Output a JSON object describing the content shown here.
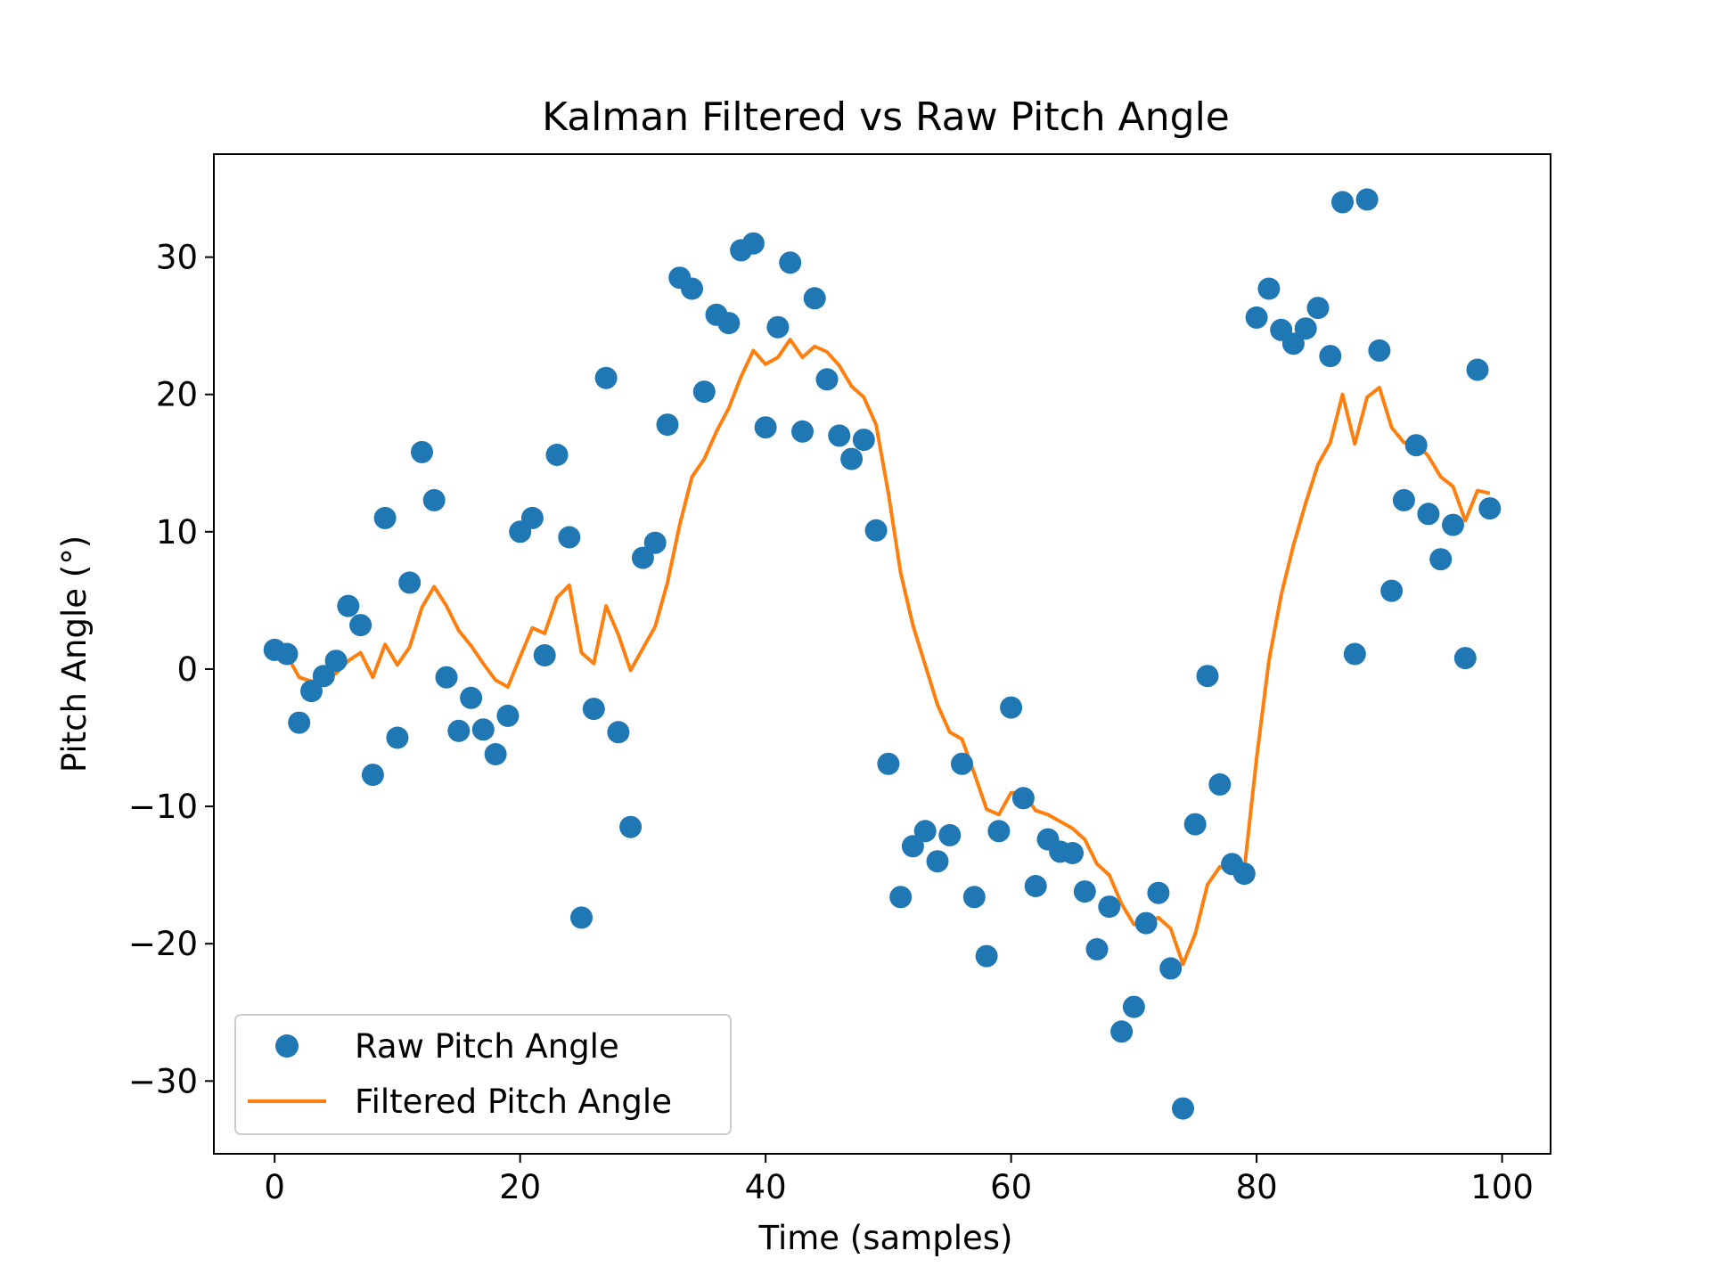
{
  "chart_data": {
    "type": "scatter",
    "title": "Kalman Filtered vs Raw Pitch Angle",
    "xlabel": "Time (samples)",
    "ylabel": "Pitch Angle (°)",
    "xlim": [
      -4.95,
      103.95
    ],
    "ylim": [
      -35.3,
      37.5
    ],
    "x_ticks": [
      0,
      20,
      40,
      60,
      80,
      100
    ],
    "y_ticks": [
      -30,
      -20,
      -10,
      0,
      10,
      20,
      30
    ],
    "x_tick_labels": [
      "0",
      "20",
      "40",
      "60",
      "80",
      "100"
    ],
    "y_tick_labels": [
      "−30",
      "−20",
      "−10",
      "0",
      "10",
      "20",
      "30"
    ],
    "grid": false,
    "legend_position": "lower-left",
    "series": [
      {
        "name": "Raw Pitch Angle",
        "kind": "scatter",
        "color": "#1f77b4",
        "x": [
          0,
          1,
          2,
          3,
          4,
          5,
          6,
          7,
          8,
          9,
          10,
          11,
          12,
          13,
          14,
          15,
          16,
          17,
          18,
          19,
          20,
          21,
          22,
          23,
          24,
          25,
          26,
          27,
          28,
          29,
          30,
          31,
          32,
          33,
          34,
          35,
          36,
          37,
          38,
          39,
          40,
          41,
          42,
          43,
          44,
          45,
          46,
          47,
          48,
          49,
          50,
          51,
          52,
          53,
          54,
          55,
          56,
          57,
          58,
          59,
          60,
          61,
          62,
          63,
          64,
          65,
          66,
          67,
          68,
          69,
          70,
          71,
          72,
          73,
          74,
          75,
          76,
          77,
          78,
          79,
          80,
          81,
          82,
          83,
          84,
          85,
          86,
          87,
          88,
          89,
          90,
          91,
          92,
          93,
          94,
          95,
          96,
          97,
          98,
          99
        ],
        "y": [
          1.4,
          1.1,
          -3.9,
          -1.6,
          -0.5,
          0.6,
          4.6,
          3.2,
          -7.7,
          11.0,
          -5.0,
          6.3,
          15.8,
          12.3,
          -0.6,
          -4.5,
          -2.1,
          -4.4,
          -6.2,
          -3.4,
          10.0,
          11.0,
          1.0,
          15.6,
          9.6,
          -18.1,
          -2.9,
          21.2,
          -4.6,
          -11.5,
          8.1,
          9.2,
          17.8,
          28.5,
          27.7,
          20.2,
          25.8,
          25.2,
          30.5,
          31.0,
          17.6,
          24.9,
          29.6,
          17.3,
          27.0,
          21.1,
          17.0,
          15.3,
          16.7,
          10.1,
          -6.9,
          -16.6,
          -12.9,
          -11.8,
          -14.0,
          -12.1,
          -6.9,
          -16.6,
          -20.9,
          -11.8,
          -2.8,
          -9.4,
          -15.8,
          -12.4,
          -13.3,
          -13.4,
          -16.2,
          -20.4,
          -17.3,
          -26.4,
          -24.6,
          -18.5,
          -16.3,
          -21.8,
          -32.0,
          -11.3,
          -0.5,
          -8.4,
          -14.2,
          -14.9,
          25.6,
          27.7,
          24.7,
          23.7,
          24.8,
          26.3,
          22.8,
          34.0,
          1.1,
          34.2,
          23.2,
          5.7,
          12.3,
          16.3,
          11.3,
          8.0,
          10.5,
          0.8,
          21.8,
          11.7
        ]
      },
      {
        "name": "Filtered Pitch Angle",
        "kind": "line",
        "color": "#ff7f0e",
        "x": [
          0,
          1,
          2,
          3,
          4,
          5,
          6,
          7,
          8,
          9,
          10,
          11,
          12,
          13,
          14,
          15,
          16,
          17,
          18,
          19,
          20,
          21,
          22,
          23,
          24,
          25,
          26,
          27,
          28,
          29,
          30,
          31,
          32,
          33,
          34,
          35,
          36,
          37,
          38,
          39,
          40,
          41,
          42,
          43,
          44,
          45,
          46,
          47,
          48,
          49,
          50,
          51,
          52,
          53,
          54,
          55,
          56,
          57,
          58,
          59,
          60,
          61,
          62,
          63,
          64,
          65,
          66,
          67,
          68,
          69,
          70,
          71,
          72,
          73,
          74,
          75,
          76,
          77,
          78,
          79,
          80,
          81,
          82,
          83,
          84,
          85,
          86,
          87,
          88,
          89,
          90,
          91,
          92,
          93,
          94,
          95,
          96,
          97,
          98,
          99
        ],
        "y": [
          1.0,
          1.0,
          -0.6,
          -0.9,
          -0.8,
          -0.3,
          0.6,
          1.2,
          -0.6,
          1.8,
          0.3,
          1.6,
          4.5,
          6.0,
          4.6,
          2.8,
          1.7,
          0.4,
          -0.8,
          -1.3,
          0.9,
          3.0,
          2.6,
          5.2,
          6.1,
          1.2,
          0.4,
          4.6,
          2.5,
          -0.1,
          1.5,
          3.1,
          6.3,
          10.5,
          14.0,
          15.3,
          17.3,
          19.0,
          21.3,
          23.2,
          22.2,
          22.7,
          24.0,
          22.7,
          23.5,
          23.1,
          22.1,
          20.6,
          19.8,
          17.8,
          12.8,
          7.0,
          3.2,
          0.3,
          -2.6,
          -4.6,
          -5.1,
          -7.6,
          -10.2,
          -10.6,
          -9.0,
          -9.0,
          -10.3,
          -10.6,
          -11.1,
          -11.6,
          -12.4,
          -14.2,
          -15.0,
          -17.1,
          -18.6,
          -18.4,
          -18.1,
          -18.9,
          -21.5,
          -19.3,
          -15.7,
          -14.4,
          -14.5,
          -14.6,
          -6.5,
          0.6,
          5.4,
          9.0,
          12.1,
          14.9,
          16.5,
          20.0,
          16.4,
          19.8,
          20.5,
          17.6,
          16.5,
          16.5,
          15.5,
          14.0,
          13.3,
          10.8,
          13.0,
          12.8
        ]
      }
    ]
  }
}
